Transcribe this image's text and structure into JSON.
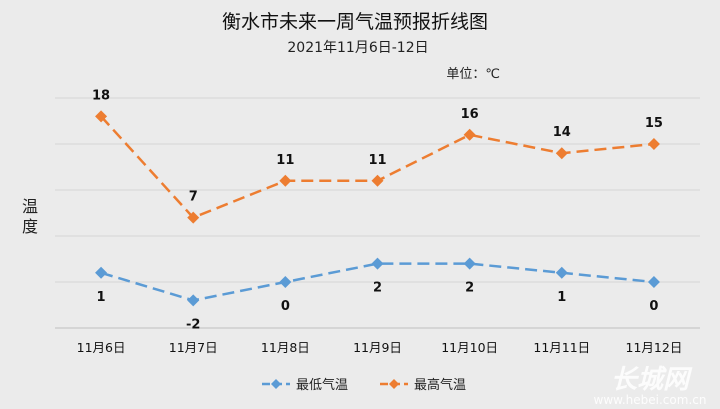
{
  "chart_data": {
    "type": "line",
    "title": "衡水市未来一周气温预报折线图",
    "subtitle": "2021年11月6日-12日",
    "unit_label": "单位：℃",
    "ylabel_chars": [
      "温",
      "度"
    ],
    "xlabel": "",
    "categories": [
      "11月6日",
      "11月7日",
      "11月8日",
      "11月9日",
      "11月10日",
      "11月11日",
      "11月12日"
    ],
    "ylim": [
      -5,
      20
    ],
    "grid": true,
    "legend_position": "bottom",
    "series": [
      {
        "name": "最低气温",
        "color": "#5b9bd5",
        "marker": "diamond",
        "values": [
          1,
          -2,
          0,
          2,
          2,
          1,
          0
        ]
      },
      {
        "name": "最高气温",
        "color": "#ed7d31",
        "marker": "diamond",
        "values": [
          18,
          7,
          11,
          11,
          16,
          14,
          15
        ]
      }
    ]
  },
  "watermark": {
    "logo_text": "长城网",
    "url": "www.hebei.com.cn"
  }
}
